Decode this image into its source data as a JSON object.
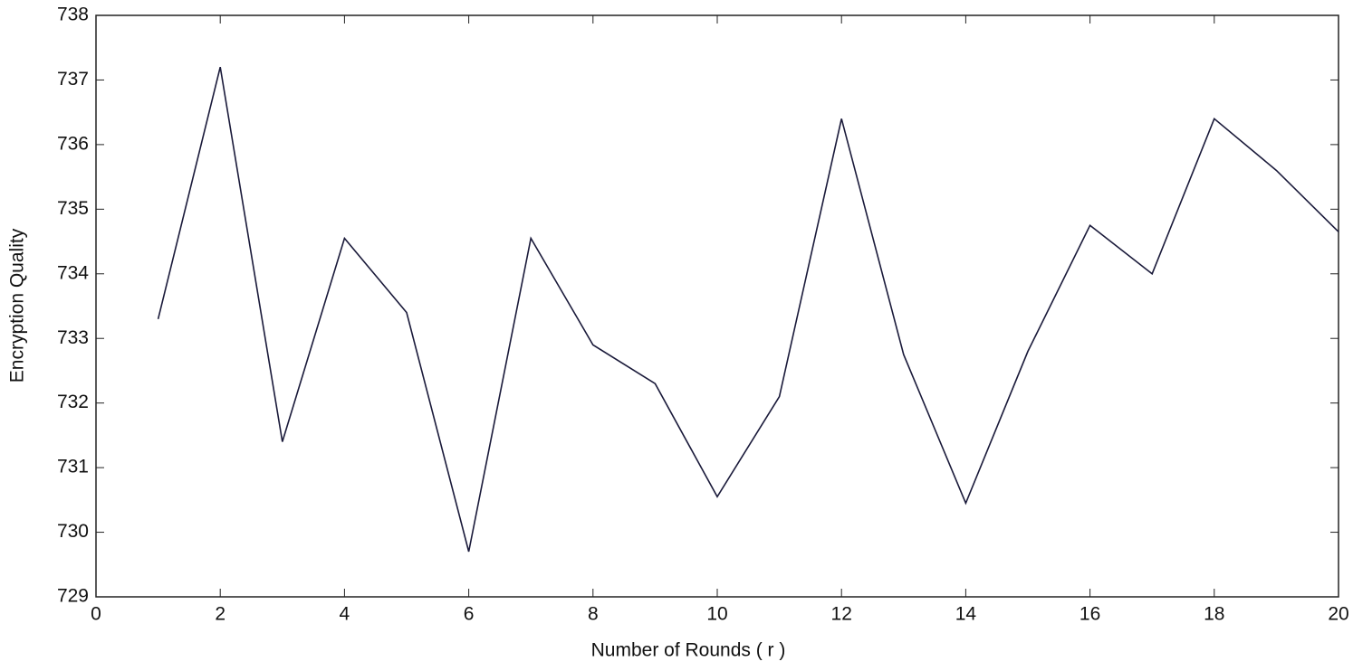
{
  "chart_data": {
    "type": "line",
    "x_label": "Number of Rounds ( r )",
    "y_label": "Encryption Quality",
    "x": [
      1,
      2,
      3,
      4,
      5,
      6,
      7,
      8,
      9,
      10,
      11,
      12,
      13,
      14,
      15,
      16,
      17,
      18,
      19,
      20
    ],
    "values": [
      733.3,
      737.2,
      731.4,
      734.55,
      733.4,
      729.7,
      734.55,
      732.9,
      732.3,
      730.55,
      732.1,
      736.4,
      732.75,
      730.45,
      732.8,
      734.75,
      734.0,
      736.4,
      735.6,
      734.65
    ],
    "color": "#1a1a3a",
    "xlim": [
      0,
      20
    ],
    "xticks": [
      0,
      2,
      4,
      6,
      8,
      10,
      12,
      14,
      16,
      18,
      20
    ],
    "ylim": [
      729,
      738
    ],
    "yticks": [
      729,
      730,
      731,
      732,
      733,
      734,
      735,
      736,
      737,
      738
    ],
    "grid": false
  }
}
